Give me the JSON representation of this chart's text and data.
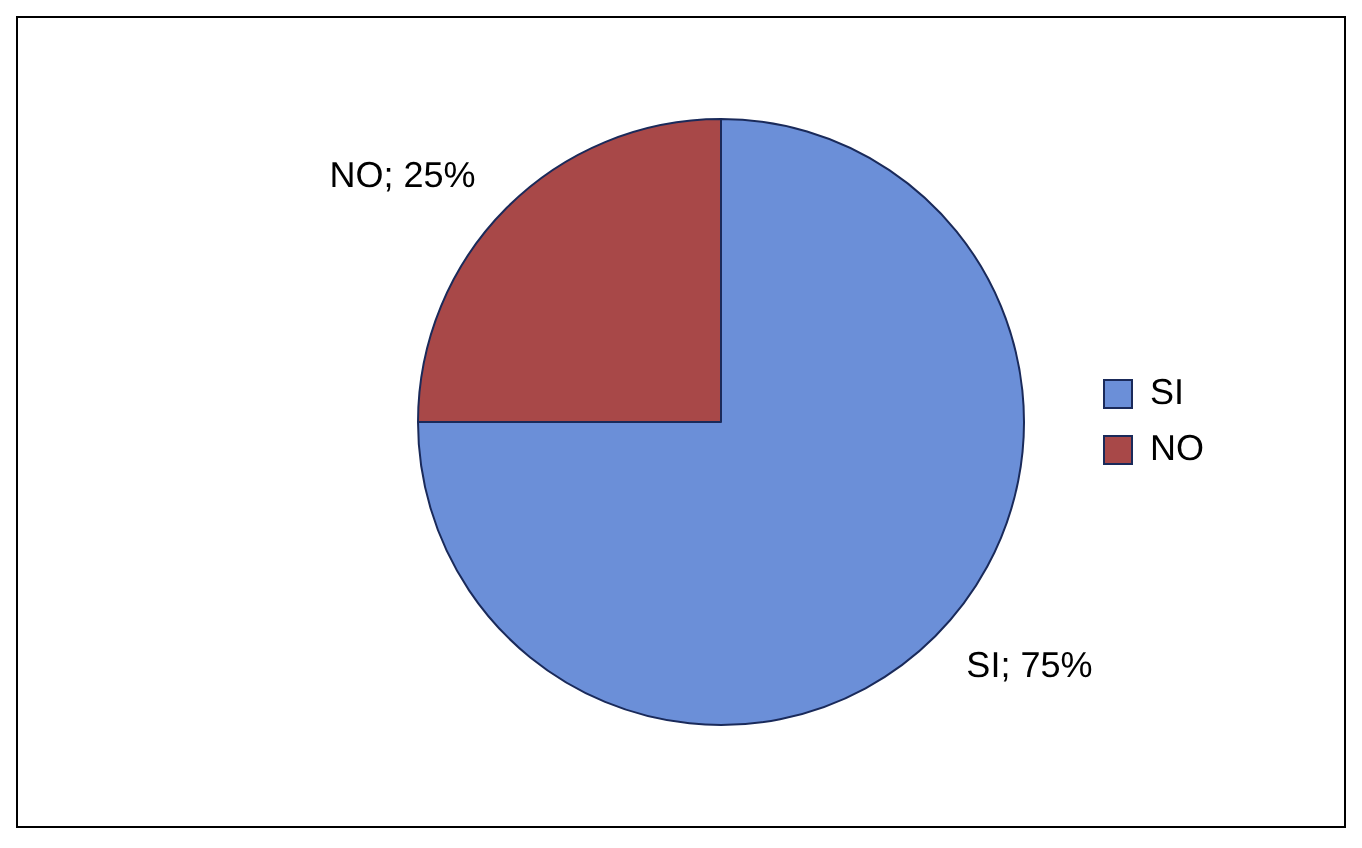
{
  "chart_data": {
    "type": "pie",
    "categories": [
      "SI",
      "NO"
    ],
    "values": [
      75,
      25
    ],
    "colors": [
      "#6b8fd8",
      "#a84848"
    ],
    "value_labels": [
      "SI; 75%",
      "NO; 25%"
    ],
    "legend": "right"
  }
}
